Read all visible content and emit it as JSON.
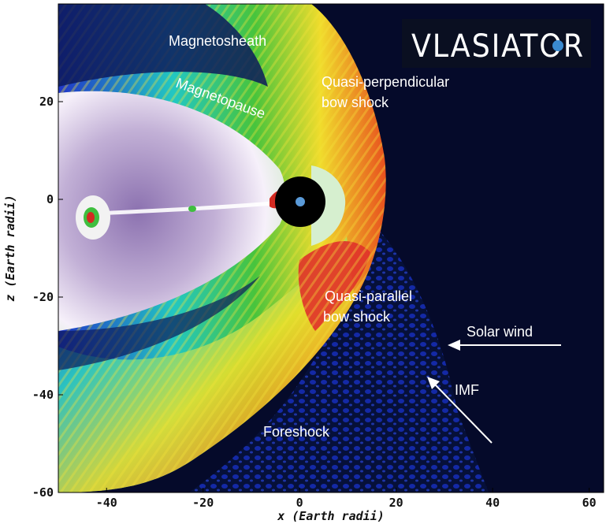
{
  "figure": {
    "x_axis_label": "x (Earth radii)",
    "y_axis_label": "z (Earth radii)",
    "x_ticks": [
      "-40",
      "-20",
      "0",
      "20",
      "40",
      "60"
    ],
    "y_ticks": [
      "20",
      "0",
      "-20",
      "-40",
      "-60"
    ],
    "x_tick_values": [
      -40,
      -20,
      0,
      20,
      40,
      60
    ],
    "y_tick_values": [
      20,
      0,
      -20,
      -40,
      -60
    ],
    "x_range": [
      -50,
      63
    ],
    "y_range": [
      -60,
      40
    ],
    "logo_text": "VLASIATOR",
    "labels": {
      "magnetosheath": "Magnetosheath",
      "magnetopause": "Magnetopause",
      "quasi_perp_1": "Quasi-perpendicular",
      "quasi_perp_2": "bow shock",
      "quasi_par_1": "Quasi-parallel",
      "quasi_par_2": "bow shock",
      "solar_wind": "Solar wind",
      "imf": "IMF",
      "foreshock": "Foreshock"
    },
    "colors": {
      "background": "#050a2a",
      "tail_core": "#a48ec0",
      "tail_white": "#f4eef8",
      "tail_green": "#b9e3b1",
      "deep_blue": "#1a2fb0",
      "cyan": "#2fd5c8",
      "green": "#3fbd3f",
      "yellow": "#f0e030",
      "orange": "#f08020",
      "red": "#e23a2a"
    }
  }
}
